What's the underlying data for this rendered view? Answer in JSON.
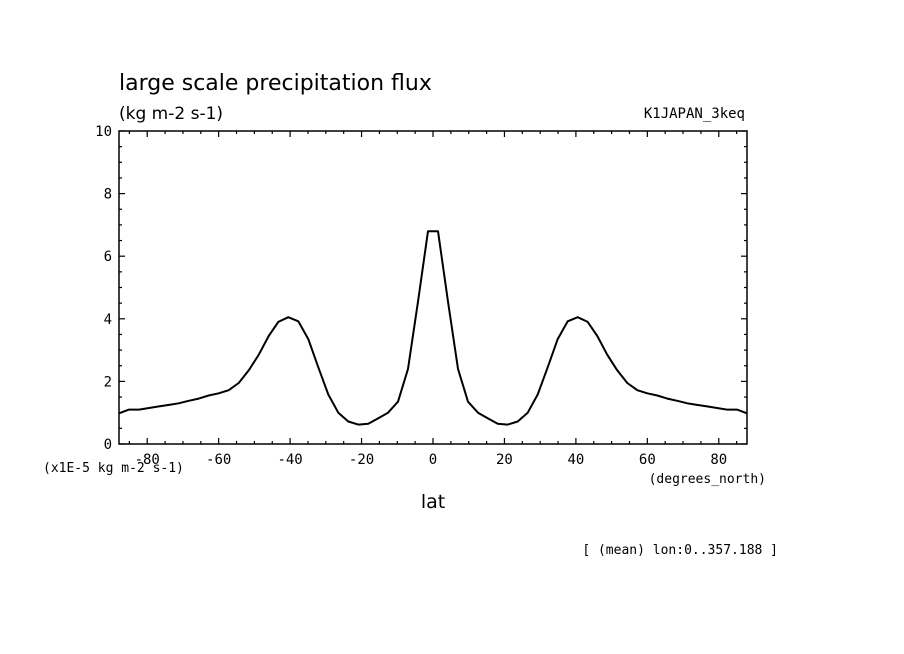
{
  "chart_data": {
    "type": "line",
    "title": "large scale precipitation flux",
    "units": "(kg m-2 s-1)",
    "run": "K1JAPAN_3keq",
    "xlabel": "lat",
    "x_units": "(degrees_north)",
    "y_scale_note": "(x1E-5 kg m-2 s-1)",
    "footer": "[ (mean) lon:0..357.188 ]",
    "xlim": [
      -87.9,
      87.9
    ],
    "ylim": [
      0,
      10
    ],
    "x_ticks": [
      -80,
      -60,
      -40,
      -20,
      0,
      20,
      40,
      60,
      80
    ],
    "y_ticks": [
      0,
      2,
      4,
      6,
      8,
      10
    ],
    "series": [
      {
        "name": "precipitation",
        "x": [
          -87.9,
          -85.1,
          -82.3,
          -79.5,
          -76.7,
          -73.9,
          -71.2,
          -68.4,
          -65.6,
          -62.8,
          -60.0,
          -57.2,
          -54.4,
          -51.6,
          -48.8,
          -46.0,
          -43.3,
          -40.5,
          -37.7,
          -34.9,
          -32.1,
          -29.3,
          -26.5,
          -23.7,
          -20.9,
          -18.1,
          -15.3,
          -12.6,
          -9.8,
          -7.0,
          -4.2,
          -1.4,
          1.4,
          4.2,
          7.0,
          9.8,
          12.6,
          15.3,
          18.1,
          20.9,
          23.7,
          26.5,
          29.3,
          32.1,
          34.9,
          37.7,
          40.5,
          43.3,
          46.0,
          48.8,
          51.6,
          54.4,
          57.2,
          60.0,
          62.8,
          65.6,
          68.4,
          71.2,
          73.9,
          76.7,
          79.5,
          82.3,
          85.1,
          87.9
        ],
        "values": [
          0.98,
          1.1,
          1.1,
          1.15,
          1.2,
          1.25,
          1.3,
          1.38,
          1.45,
          1.55,
          1.62,
          1.72,
          1.95,
          2.35,
          2.85,
          3.45,
          3.9,
          4.05,
          3.92,
          3.35,
          2.45,
          1.58,
          1.0,
          0.72,
          0.62,
          0.65,
          0.82,
          1.0,
          1.35,
          2.4,
          4.55,
          6.8,
          6.8,
          4.55,
          2.4,
          1.35,
          1.0,
          0.82,
          0.65,
          0.62,
          0.72,
          1.0,
          1.58,
          2.45,
          3.35,
          3.92,
          4.05,
          3.9,
          3.45,
          2.85,
          2.35,
          1.95,
          1.72,
          1.62,
          1.55,
          1.45,
          1.38,
          1.3,
          1.25,
          1.2,
          1.15,
          1.1,
          1.1,
          0.98
        ]
      }
    ]
  }
}
